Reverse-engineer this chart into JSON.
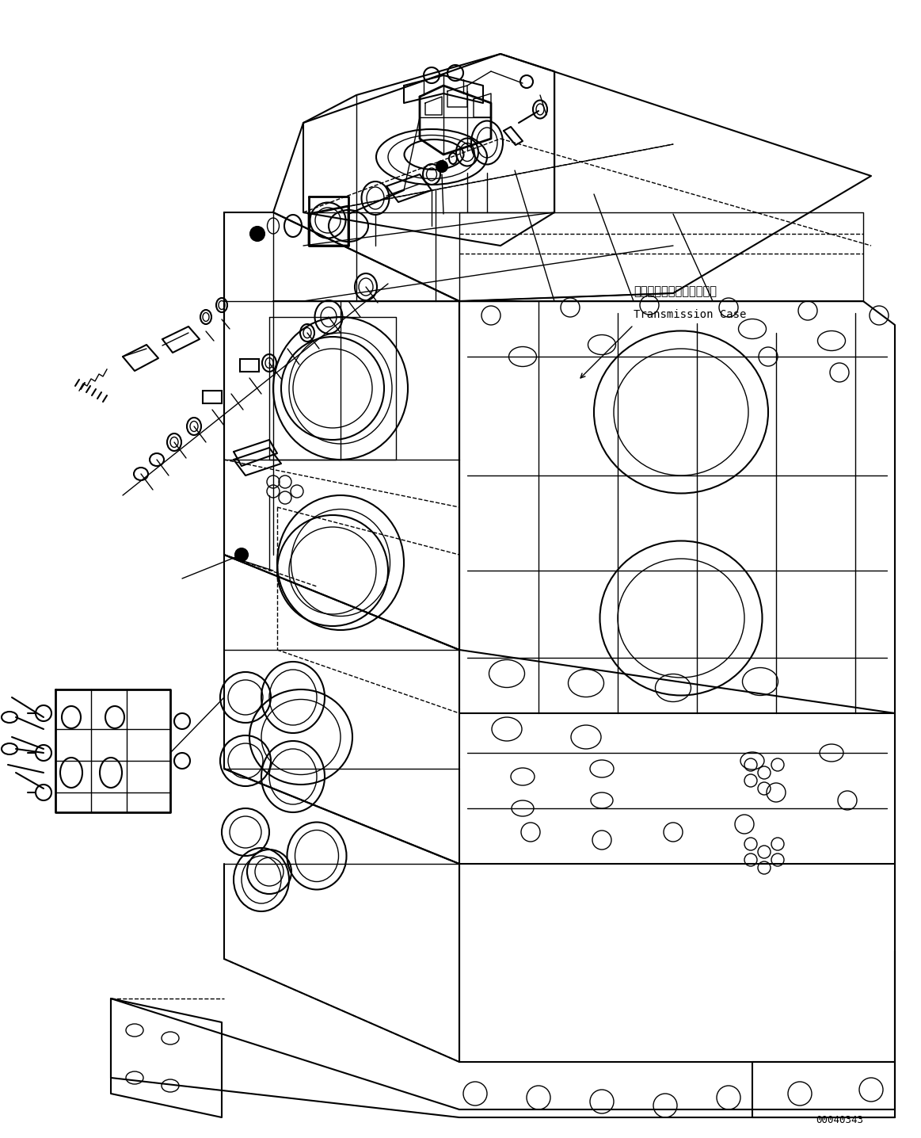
{
  "background_color": "#ffffff",
  "line_color": "#000000",
  "label_japanese": "トランスミッションケース",
  "label_english": "Transmission Case",
  "part_number": "00040343",
  "figsize": [
    11.63,
    14.36
  ],
  "dpi": 100,
  "font_size_label": 10.5,
  "font_size_part": 9
}
